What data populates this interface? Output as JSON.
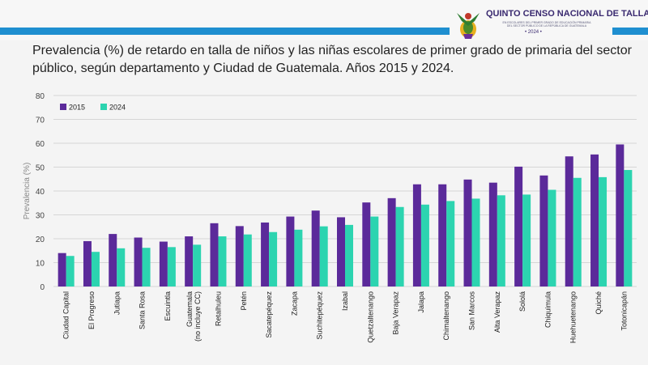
{
  "header": {
    "title": "QUINTO CENSO NACIONAL DE TALLA",
    "subtitle": "EN ESCOLARES DEL PRIMER GRADO DE EDUCACIÓN PRIMARIA DEL SECTOR PÚBLICO DE LA REPÚBLICA DE GUATEMALA",
    "year": "• 2024 •",
    "colors": {
      "stripe": "#1f8fd0"
    }
  },
  "page_title": "Prevalencia (%) de retardo en talla de niños y las niñas escolares de primer grado de primaria del sector público, según departamento y Ciudad de Guatemala. Años 2015 y 2024.",
  "chart_data": {
    "type": "bar",
    "ylabel": "Prevalencia (%)",
    "xlabel": "",
    "ylim": [
      0,
      80
    ],
    "yticks": [
      0,
      10,
      20,
      30,
      40,
      50,
      60,
      70,
      80
    ],
    "grid": true,
    "legend_position": "top-left",
    "categories": [
      "Ciudad Capital",
      "El Progreso",
      "Jutiapa",
      "Santa Rosa",
      "Escuintla",
      "Guatemala (no incluye CC)",
      "Retalhuleu",
      "Petén",
      "Sacatepéquez",
      "Zacapa",
      "Suchitepéquez",
      "Izabal",
      "Quetzaltenango",
      "Baja Verapaz",
      "Jalapa",
      "Chimaltenango",
      "San Marcos",
      "Alta Verapaz",
      "Sololá",
      "Chiquimula",
      "Huehuetenango",
      "Quiché",
      "Totonicapán"
    ],
    "series": [
      {
        "name": "2015",
        "color": "#5b2a9a",
        "values": [
          14,
          19,
          22,
          20.5,
          18.8,
          21,
          26.5,
          25.3,
          26.8,
          29.3,
          31.8,
          29,
          35.2,
          37,
          42.8,
          42.8,
          44.8,
          43.5,
          50.2,
          46.5,
          54.5,
          55.3,
          59.5
        ]
      },
      {
        "name": "2024",
        "color": "#2cd4b0",
        "values": [
          12.8,
          14.5,
          16,
          16.2,
          16.5,
          17.5,
          21,
          21.8,
          22.8,
          23.8,
          25.2,
          25.8,
          29.3,
          33.3,
          34.3,
          35.8,
          36.8,
          38.2,
          38.5,
          40.5,
          45.5,
          45.8,
          48.8
        ]
      }
    ]
  }
}
